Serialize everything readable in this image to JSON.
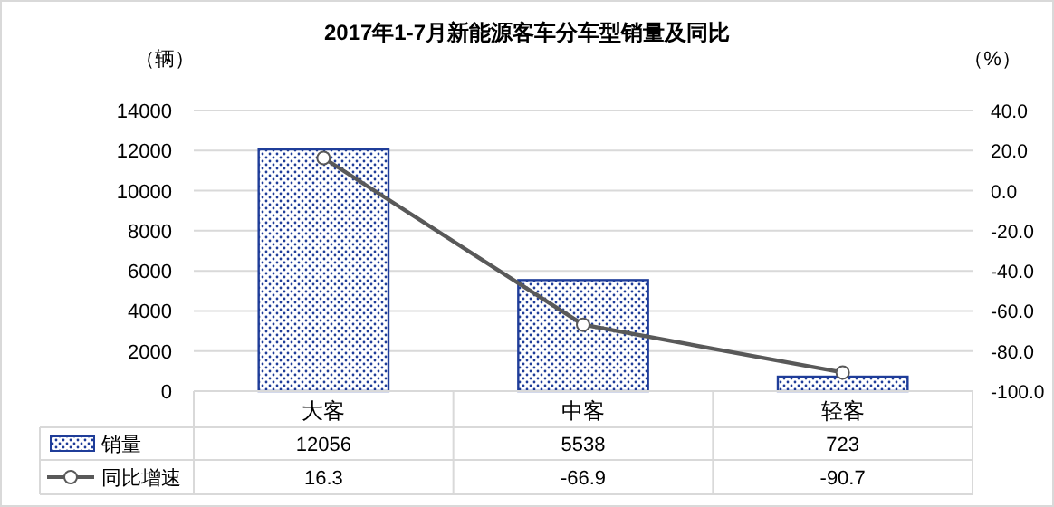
{
  "chart_data": {
    "type": "bar",
    "title": "2017年1-7月新能源客车分车型销量及同比",
    "ylabel": "（辆）",
    "y2label": "（%）",
    "categories": [
      "大客",
      "中客",
      "轻客"
    ],
    "series": [
      {
        "name": "销量",
        "color": "#1f3d99",
        "values": [
          12056,
          5538,
          723
        ]
      },
      {
        "name": "同比增速",
        "type": "line",
        "axis": "y2",
        "color": "#595959",
        "marker": "circle",
        "values": [
          16.3,
          -66.9,
          -90.7
        ]
      }
    ],
    "ylim": [
      0,
      14000
    ],
    "yticks": [
      0,
      2000,
      4000,
      6000,
      8000,
      10000,
      12000,
      14000
    ],
    "y2lim": [
      -100,
      40
    ],
    "y2ticks": [
      {
        "value": -100,
        "label": "-100.0"
      },
      {
        "value": -80,
        "label": "-80.0"
      },
      {
        "value": -60,
        "label": "-60.0"
      },
      {
        "value": -40,
        "label": "-40.0"
      },
      {
        "value": -20,
        "label": "-20.0"
      },
      {
        "value": 0,
        "label": "0.0"
      },
      {
        "value": 20,
        "label": "20.0"
      },
      {
        "value": 40,
        "label": "40.0"
      }
    ],
    "grid": "y",
    "legend": "bottom",
    "data_labels": true
  }
}
